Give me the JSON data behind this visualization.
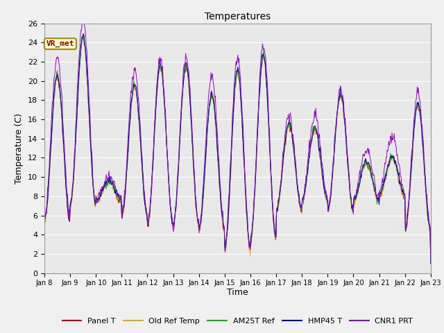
{
  "title": "Temperatures",
  "xlabel": "Time",
  "ylabel": "Temperature (C)",
  "ylim": [
    0,
    26
  ],
  "yticks": [
    0,
    2,
    4,
    6,
    8,
    10,
    12,
    14,
    16,
    18,
    20,
    22,
    24,
    26
  ],
  "x_labels": [
    "Jan 8",
    "Jan 9",
    "Jan 10",
    "Jan 11",
    "Jan 12",
    "Jan 13",
    "Jan 14",
    "Jan 15",
    "Jan 16",
    "Jan 17",
    "Jan 18",
    "Jan 19",
    "Jan 20",
    "Jan 21",
    "Jan 22",
    "Jan 23"
  ],
  "annotation_text": "VR_met",
  "series_colors": [
    "#cc0000",
    "#ddaa00",
    "#00bb00",
    "#0000cc",
    "#9900cc"
  ],
  "series_labels": [
    "Panel T",
    "Old Ref Temp",
    "AM25T Ref",
    "HMP45 T",
    "CNR1 PRT"
  ],
  "bg_color": "#f0f0f0",
  "plot_bg": "#e8e8e8",
  "n_points": 720,
  "n_days": 15
}
